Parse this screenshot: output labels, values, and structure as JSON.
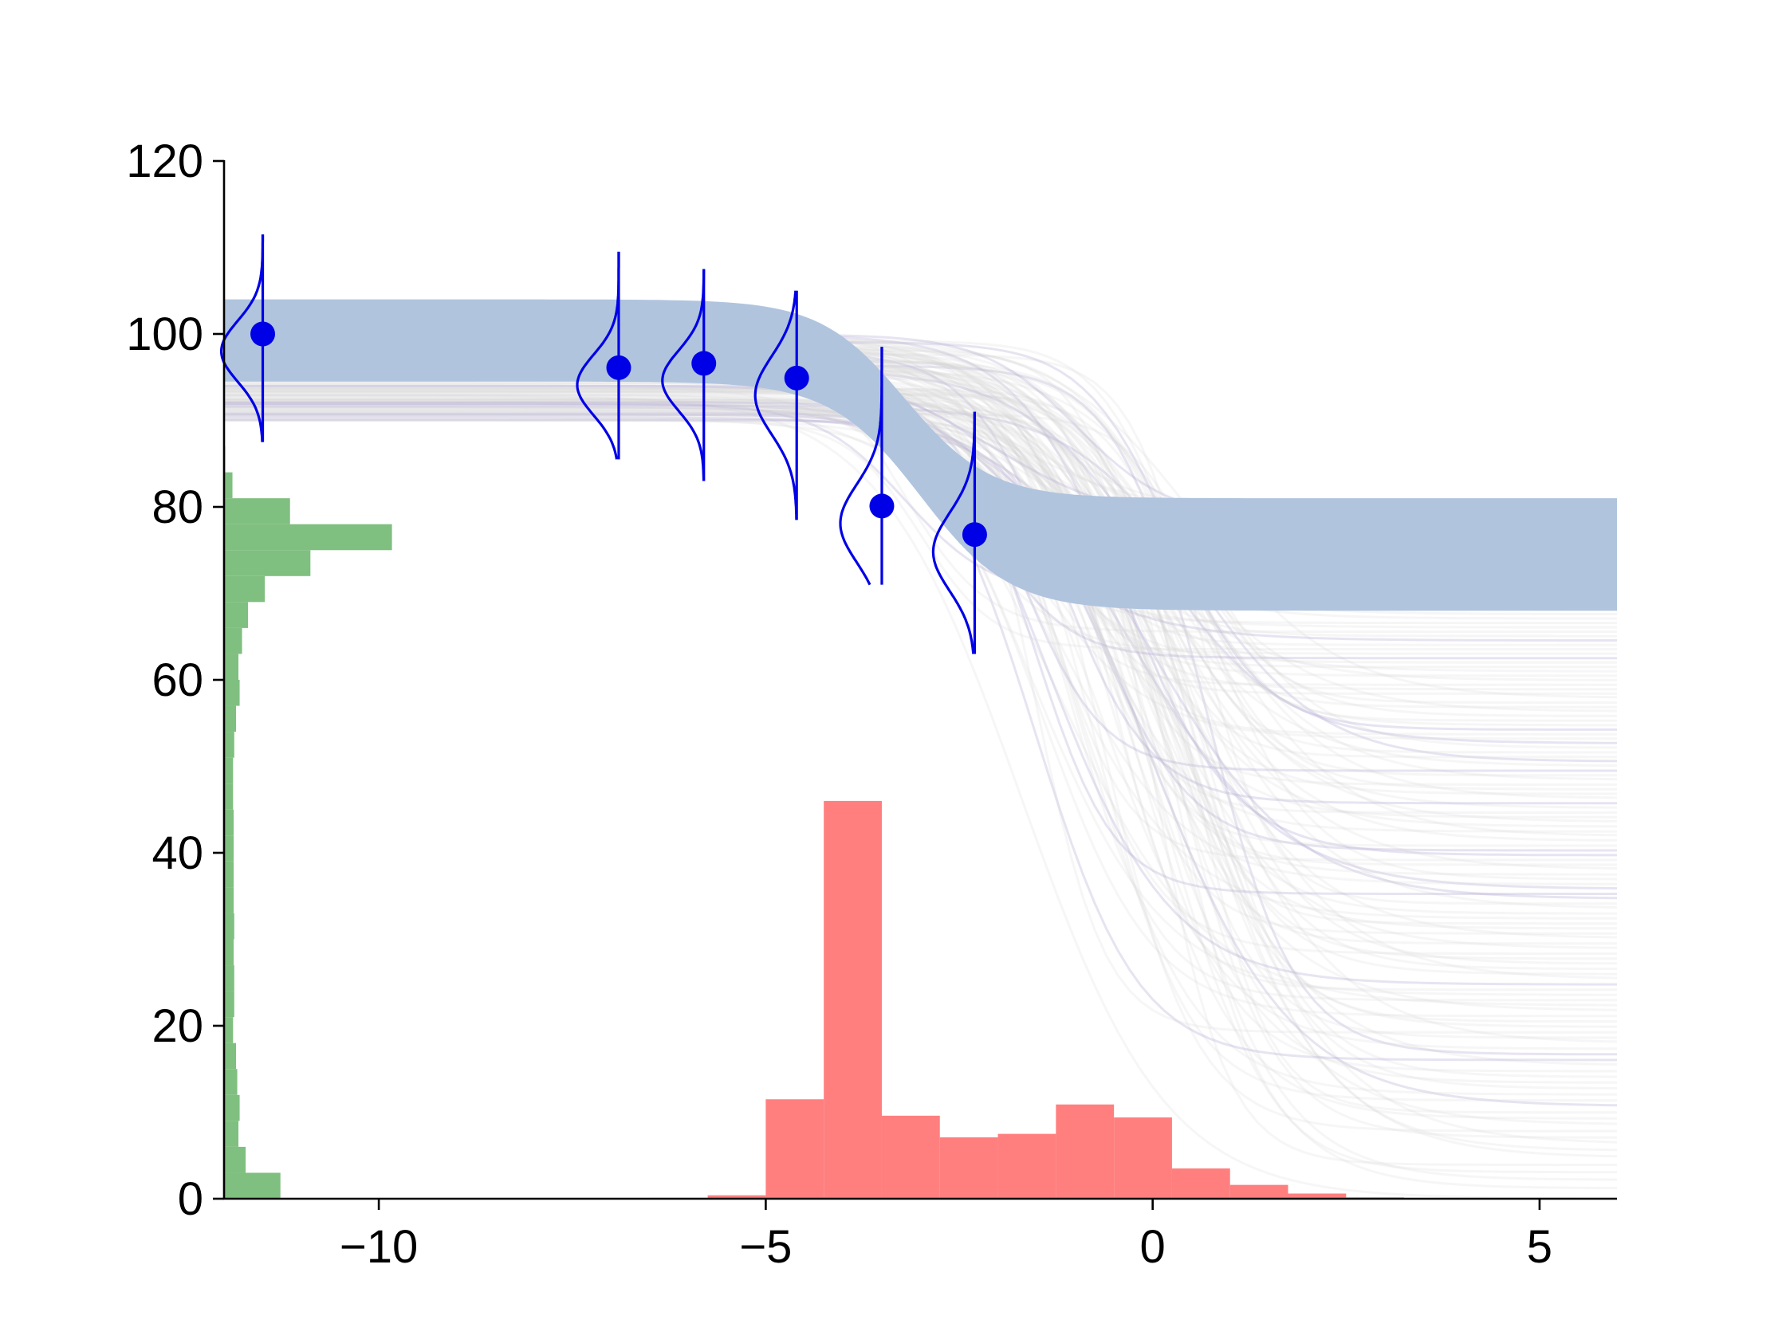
{
  "chart_data": {
    "type": "scatter",
    "title": "",
    "xlabel": "",
    "ylabel": "",
    "xlim": [
      -12,
      6
    ],
    "ylim": [
      0,
      120
    ],
    "x_ticks": [
      -10,
      -5,
      0,
      5
    ],
    "x_tick_labels": [
      "−10",
      "−5",
      "0",
      "5"
    ],
    "y_ticks": [
      0,
      20,
      40,
      60,
      80,
      100,
      120
    ],
    "y_tick_labels": [
      "0",
      "20",
      "40",
      "60",
      "80",
      "100",
      "120"
    ],
    "grid": false,
    "legend": "none",
    "colors": {
      "points": "#0000e6",
      "band": "#b0c4de",
      "band_edge": "#b9b3d6",
      "traces": "#d8d8d8",
      "hist_green": "#7fbf7f",
      "hist_red": "#ff7f7f",
      "axis": "#000000"
    },
    "observations": [
      {
        "x": -11.5,
        "y": 100.0,
        "err_low": 87.5,
        "err_high": 111.5,
        "sigma": 3.5
      },
      {
        "x": -6.9,
        "y": 96.1,
        "err_low": 85.5,
        "err_high": 109.5,
        "sigma": 3.5
      },
      {
        "x": -5.8,
        "y": 96.6,
        "err_low": 83.0,
        "err_high": 107.5,
        "sigma": 3.5
      },
      {
        "x": -4.6,
        "y": 94.9,
        "err_low": 78.5,
        "err_high": 105.0,
        "sigma": 4.5
      },
      {
        "x": -3.5,
        "y": 80.1,
        "err_low": 71.0,
        "err_high": 98.5,
        "sigma": 4.5
      },
      {
        "x": -2.3,
        "y": 76.8,
        "err_low": 63.0,
        "err_high": 91.0,
        "sigma": 4.5
      }
    ],
    "fit_band": {
      "upper_left": 104,
      "upper_right": 81,
      "lower_left": 94.5,
      "lower_right": 68,
      "upper_mid_x": -3.2,
      "lower_mid_x": -3.0,
      "width": 0.55
    },
    "trace_fan": {
      "left_y": 95,
      "mid_x": -0.5,
      "width": 0.75,
      "right_y_range": [
        0,
        80
      ]
    },
    "hist_green": {
      "orientation": "horizontal",
      "bins": [
        {
          "y0": 0,
          "y1": 3,
          "value": 4.7
        },
        {
          "y0": 3,
          "y1": 6,
          "value": 1.8
        },
        {
          "y0": 6,
          "y1": 9,
          "value": 1.2
        },
        {
          "y0": 9,
          "y1": 12,
          "value": 1.3
        },
        {
          "y0": 12,
          "y1": 15,
          "value": 1.1
        },
        {
          "y0": 15,
          "y1": 18,
          "value": 1.0
        },
        {
          "y0": 18,
          "y1": 21,
          "value": 0.75
        },
        {
          "y0": 21,
          "y1": 24,
          "value": 0.85
        },
        {
          "y0": 24,
          "y1": 27,
          "value": 0.85
        },
        {
          "y0": 27,
          "y1": 30,
          "value": 0.8
        },
        {
          "y0": 30,
          "y1": 33,
          "value": 0.85
        },
        {
          "y0": 33,
          "y1": 36,
          "value": 0.8
        },
        {
          "y0": 36,
          "y1": 39,
          "value": 0.8
        },
        {
          "y0": 39,
          "y1": 42,
          "value": 0.8
        },
        {
          "y0": 42,
          "y1": 45,
          "value": 0.8
        },
        {
          "y0": 45,
          "y1": 48,
          "value": 0.75
        },
        {
          "y0": 48,
          "y1": 51,
          "value": 0.75
        },
        {
          "y0": 51,
          "y1": 54,
          "value": 0.85
        },
        {
          "y0": 54,
          "y1": 57,
          "value": 1.0
        },
        {
          "y0": 57,
          "y1": 60,
          "value": 1.3
        },
        {
          "y0": 60,
          "y1": 63,
          "value": 1.2
        },
        {
          "y0": 63,
          "y1": 66,
          "value": 1.5
        },
        {
          "y0": 66,
          "y1": 69,
          "value": 2.0
        },
        {
          "y0": 69,
          "y1": 72,
          "value": 3.4
        },
        {
          "y0": 72,
          "y1": 75,
          "value": 7.2
        },
        {
          "y0": 75,
          "y1": 78,
          "value": 14.0
        },
        {
          "y0": 78,
          "y1": 81,
          "value": 5.5
        },
        {
          "y0": 81,
          "y1": 84,
          "value": 0.7
        },
        {
          "y0": 84,
          "y1": 87,
          "value": 0.1
        }
      ]
    },
    "hist_red": {
      "orientation": "vertical",
      "bins": [
        {
          "x0": -6.5,
          "x1": -5.75,
          "value": 0.1
        },
        {
          "x0": -5.75,
          "x1": -5.0,
          "value": 0.4
        },
        {
          "x0": -5.0,
          "x1": -4.25,
          "value": 11.5
        },
        {
          "x0": -4.25,
          "x1": -3.5,
          "value": 46.0
        },
        {
          "x0": -3.5,
          "x1": -2.75,
          "value": 9.6
        },
        {
          "x0": -2.75,
          "x1": -2.0,
          "value": 7.1
        },
        {
          "x0": -2.0,
          "x1": -1.25,
          "value": 7.5
        },
        {
          "x0": -1.25,
          "x1": -0.5,
          "value": 10.9
        },
        {
          "x0": -0.5,
          "x1": 0.25,
          "value": 9.4
        },
        {
          "x0": 0.25,
          "x1": 1.0,
          "value": 3.5
        },
        {
          "x0": 1.0,
          "x1": 1.75,
          "value": 1.6
        },
        {
          "x0": 1.75,
          "x1": 2.5,
          "value": 0.6
        },
        {
          "x0": 2.5,
          "x1": 3.25,
          "value": 0.15
        }
      ]
    }
  }
}
